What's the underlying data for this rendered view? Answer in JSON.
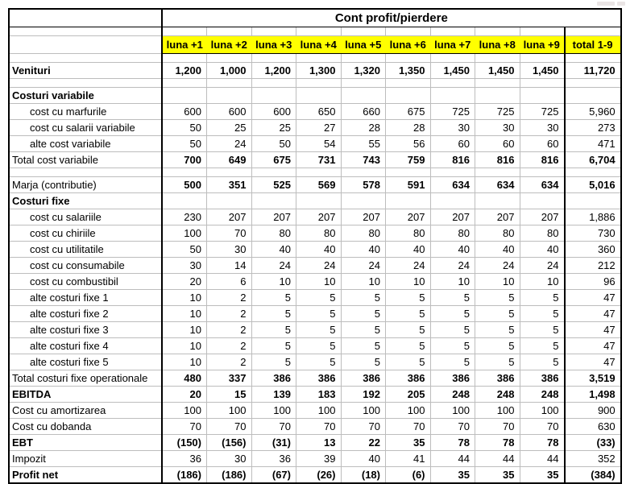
{
  "table": {
    "title": "Cont profit/pierdere",
    "columns": [
      "luna +1",
      "luna +2",
      "luna +3",
      "luna +4",
      "luna +5",
      "luna +6",
      "luna +7",
      "luna +8",
      "luna +9",
      "total 1-9"
    ],
    "rows": [
      {
        "type": "bold",
        "label": "Venituri",
        "values": [
          "1,200",
          "1,000",
          "1,200",
          "1,300",
          "1,320",
          "1,350",
          "1,450",
          "1,450",
          "1,450",
          "11,720"
        ]
      },
      {
        "type": "spacer"
      },
      {
        "type": "section",
        "label": "Costuri variabile",
        "values": [
          "",
          "",
          "",
          "",
          "",
          "",
          "",
          "",
          "",
          ""
        ]
      },
      {
        "type": "item",
        "label": "cost cu marfurile",
        "values": [
          "600",
          "600",
          "600",
          "650",
          "660",
          "675",
          "725",
          "725",
          "725",
          "5,960"
        ]
      },
      {
        "type": "item",
        "label": "cost cu salarii variabile",
        "values": [
          "50",
          "25",
          "25",
          "27",
          "28",
          "28",
          "30",
          "30",
          "30",
          "273"
        ]
      },
      {
        "type": "item",
        "label": "alte cost variabile",
        "values": [
          "50",
          "24",
          "50",
          "54",
          "55",
          "56",
          "60",
          "60",
          "60",
          "471"
        ]
      },
      {
        "type": "total",
        "label": "Total cost variabile",
        "values": [
          "700",
          "649",
          "675",
          "731",
          "743",
          "759",
          "816",
          "816",
          "816",
          "6,704"
        ]
      },
      {
        "type": "spacer"
      },
      {
        "type": "total",
        "label": "Marja (contributie)",
        "values": [
          "500",
          "351",
          "525",
          "569",
          "578",
          "591",
          "634",
          "634",
          "634",
          "5,016"
        ]
      },
      {
        "type": "section",
        "label": "Costuri fixe",
        "values": [
          "",
          "",
          "",
          "",
          "",
          "",
          "",
          "",
          "",
          ""
        ]
      },
      {
        "type": "item",
        "label": "cost cu salariile",
        "values": [
          "230",
          "207",
          "207",
          "207",
          "207",
          "207",
          "207",
          "207",
          "207",
          "1,886"
        ]
      },
      {
        "type": "item",
        "label": "cost cu chiriile",
        "values": [
          "100",
          "70",
          "80",
          "80",
          "80",
          "80",
          "80",
          "80",
          "80",
          "730"
        ]
      },
      {
        "type": "item",
        "label": "cost cu utilitatile",
        "values": [
          "50",
          "30",
          "40",
          "40",
          "40",
          "40",
          "40",
          "40",
          "40",
          "360"
        ]
      },
      {
        "type": "item",
        "label": "cost cu consumabile",
        "values": [
          "30",
          "14",
          "24",
          "24",
          "24",
          "24",
          "24",
          "24",
          "24",
          "212"
        ]
      },
      {
        "type": "item",
        "label": "cost cu combustibil",
        "values": [
          "20",
          "6",
          "10",
          "10",
          "10",
          "10",
          "10",
          "10",
          "10",
          "96"
        ]
      },
      {
        "type": "item",
        "label": "alte costuri fixe 1",
        "values": [
          "10",
          "2",
          "5",
          "5",
          "5",
          "5",
          "5",
          "5",
          "5",
          "47"
        ]
      },
      {
        "type": "item",
        "label": "alte costuri fixe 2",
        "values": [
          "10",
          "2",
          "5",
          "5",
          "5",
          "5",
          "5",
          "5",
          "5",
          "47"
        ]
      },
      {
        "type": "item",
        "label": "alte costuri fixe 3",
        "values": [
          "10",
          "2",
          "5",
          "5",
          "5",
          "5",
          "5",
          "5",
          "5",
          "47"
        ]
      },
      {
        "type": "item",
        "label": "alte costuri fixe 4",
        "values": [
          "10",
          "2",
          "5",
          "5",
          "5",
          "5",
          "5",
          "5",
          "5",
          "47"
        ]
      },
      {
        "type": "item",
        "label": "alte costuri fixe 5",
        "values": [
          "10",
          "2",
          "5",
          "5",
          "5",
          "5",
          "5",
          "5",
          "5",
          "47"
        ]
      },
      {
        "type": "total",
        "label": "Total costuri fixe operationale",
        "values": [
          "480",
          "337",
          "386",
          "386",
          "386",
          "386",
          "386",
          "386",
          "386",
          "3,519"
        ]
      },
      {
        "type": "bold",
        "label": "EBITDA",
        "values": [
          "20",
          "15",
          "139",
          "183",
          "192",
          "205",
          "248",
          "248",
          "248",
          "1,498"
        ]
      },
      {
        "type": "plain",
        "label": "Cost cu amortizarea",
        "values": [
          "100",
          "100",
          "100",
          "100",
          "100",
          "100",
          "100",
          "100",
          "100",
          "900"
        ]
      },
      {
        "type": "plain",
        "label": "Cost cu dobanda",
        "values": [
          "70",
          "70",
          "70",
          "70",
          "70",
          "70",
          "70",
          "70",
          "70",
          "630"
        ]
      },
      {
        "type": "bold",
        "label": "EBT",
        "values": [
          "(150)",
          "(156)",
          "(31)",
          "13",
          "22",
          "35",
          "78",
          "78",
          "78",
          "(33)"
        ]
      },
      {
        "type": "plain",
        "label": "Impozit",
        "values": [
          "36",
          "30",
          "36",
          "39",
          "40",
          "41",
          "44",
          "44",
          "44",
          "352"
        ]
      },
      {
        "type": "bold",
        "label": "Profit net",
        "values": [
          "(186)",
          "(186)",
          "(67)",
          "(26)",
          "(18)",
          "(6)",
          "35",
          "35",
          "35",
          "(384)"
        ]
      }
    ],
    "colors": {
      "header_bg": "#FFFF00",
      "grid_line": "#BDBDBD",
      "border": "#000000",
      "text": "#000000",
      "background": "#FFFFFF"
    }
  }
}
